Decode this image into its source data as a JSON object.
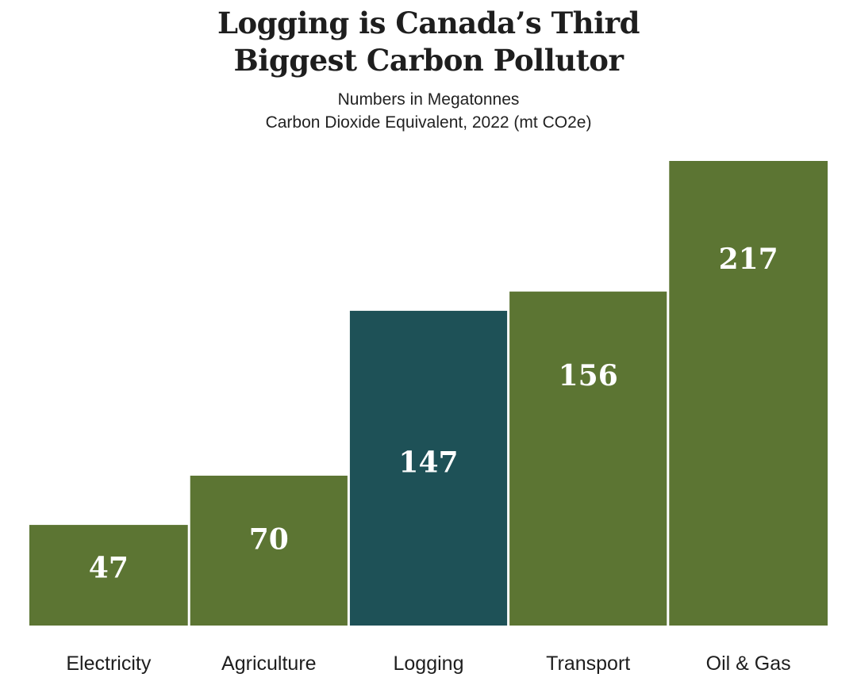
{
  "chart_data": {
    "type": "bar",
    "title": "Logging is Canada's Third Biggest Carbon Pollutor",
    "title_lines": [
      "Logging is Canada’s Third",
      "Biggest Carbon Pollutor"
    ],
    "subtitle_lines": [
      "Numbers in Megatonnes",
      "Carbon Dioxide Equivalent, 2022 (mt CO2e)"
    ],
    "categories": [
      "Electricity",
      "Agriculture",
      "Logging",
      "Transport",
      "Oil & Gas"
    ],
    "values": [
      47,
      70,
      147,
      156,
      217
    ],
    "highlight_category": "Logging",
    "xlabel": "",
    "ylabel": "",
    "ylim": [
      0,
      217
    ],
    "grid": false,
    "legend": "none",
    "colors": {
      "bar": "#5c7533",
      "highlight": "#1e5157",
      "value_label": "#ffffff",
      "text": "#1e1e1e"
    }
  }
}
